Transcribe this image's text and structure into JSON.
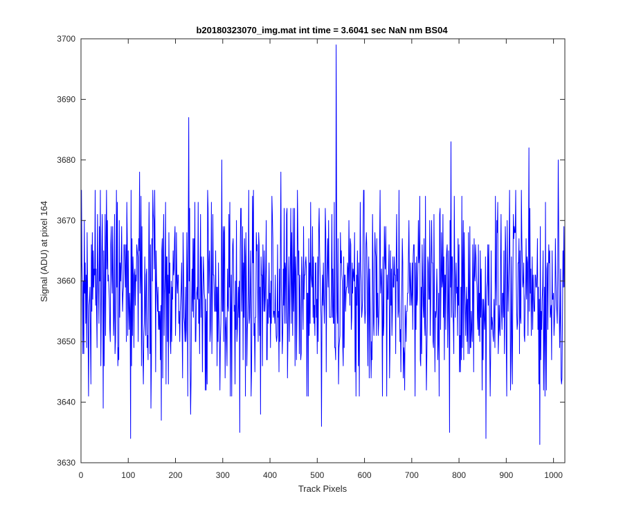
{
  "chart_data": {
    "type": "line",
    "title": "b20180323070_img.mat int time = 3.6041 sec  NaN nm BS04",
    "xlabel": "Track Pixels",
    "ylabel": "Signal (ADU) at pixel 164",
    "xlim": [
      0,
      1024
    ],
    "ylim": [
      3630,
      3700
    ],
    "xticks": [
      "0",
      "100",
      "200",
      "300",
      "400",
      "500",
      "600",
      "700",
      "800",
      "900",
      "1000"
    ],
    "yticks": [
      "3630",
      "3640",
      "3650",
      "3660",
      "3670",
      "3680",
      "3690",
      "3700"
    ],
    "grid": false,
    "legend": "none",
    "series": [
      {
        "color": "#0000ff",
        "baseline_mean": 3658,
        "noise_range": [
          3641,
          3675
        ],
        "num_points": 1024,
        "x_step": 1,
        "notable_points": [
          {
            "x": 2,
            "y": 3663
          },
          {
            "x": 7,
            "y": 3670
          },
          {
            "x": 16,
            "y": 3641
          },
          {
            "x": 21,
            "y": 3643
          },
          {
            "x": 47,
            "y": 3639
          },
          {
            "x": 54,
            "y": 3675
          },
          {
            "x": 75,
            "y": 3675
          },
          {
            "x": 105,
            "y": 3634
          },
          {
            "x": 124,
            "y": 3678
          },
          {
            "x": 148,
            "y": 3639
          },
          {
            "x": 170,
            "y": 3637
          },
          {
            "x": 228,
            "y": 3687
          },
          {
            "x": 232,
            "y": 3638
          },
          {
            "x": 298,
            "y": 3680
          },
          {
            "x": 336,
            "y": 3635
          },
          {
            "x": 380,
            "y": 3638
          },
          {
            "x": 423,
            "y": 3678
          },
          {
            "x": 509,
            "y": 3636
          },
          {
            "x": 540,
            "y": 3699
          },
          {
            "x": 780,
            "y": 3635
          },
          {
            "x": 783,
            "y": 3683
          },
          {
            "x": 857,
            "y": 3634
          },
          {
            "x": 948,
            "y": 3682
          },
          {
            "x": 971,
            "y": 3633
          },
          {
            "x": 1010,
            "y": 3680
          },
          {
            "x": 1018,
            "y": 3644
          },
          {
            "x": 1023,
            "y": 3659
          }
        ]
      }
    ]
  }
}
